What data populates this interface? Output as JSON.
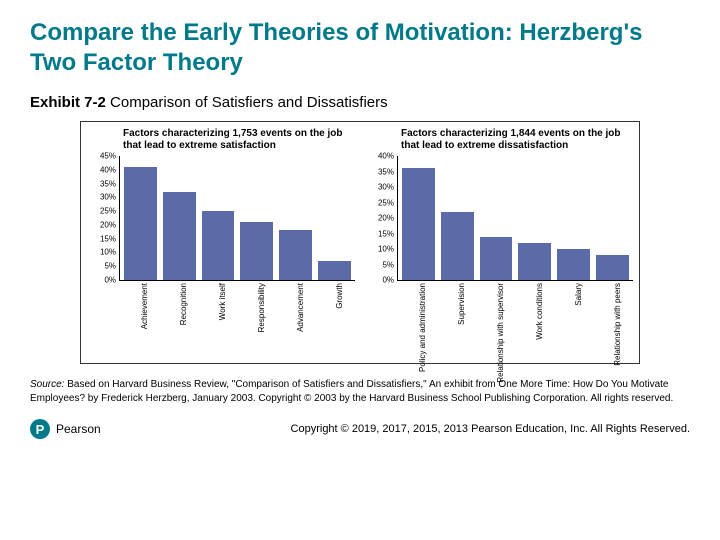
{
  "page": {
    "title": "Compare the Early Theories of Motivation: Herzberg's Two Factor Theory",
    "exhibit_bold": "Exhibit 7-2",
    "exhibit_rest": " Comparison of Satisfiers and Dissatisfiers",
    "source_label": "Source:",
    "source_text": " Based on Harvard Business Review, \"Comparison of Satisfiers and Dissatisfiers,\" An exhibit from One More Time: How Do You Motivate Employees? by Frederick Herzberg, January 2003. Copyright © 2003 by the Harvard Business School Publishing Corporation. All rights reserved.",
    "brand": "Pearson",
    "copyright": "Copyright © 2019, 2017, 2015, 2013 Pearson Education, Inc. All Rights Reserved."
  },
  "left_chart": {
    "type": "bar",
    "title": "Factors characterizing 1,753 events on the job that lead to extreme satisfaction",
    "title_fontsize": 10,
    "bar_color": "#5a6ba8",
    "background_color": "#ffffff",
    "axis_color": "#000000",
    "label_fontsize": 8,
    "ymax": 45,
    "ymin": 0,
    "yticks": [
      45,
      40,
      35,
      30,
      25,
      20,
      15,
      10,
      5,
      0
    ],
    "ytick_labels": [
      "45%",
      "40%",
      "35%",
      "30%",
      "25%",
      "20%",
      "15%",
      "10%",
      "5%",
      "0%"
    ],
    "categories": [
      "Achievement",
      "Recognition",
      "Work itself",
      "Responsibility",
      "Advancement",
      "Growth"
    ],
    "values": [
      41,
      32,
      25,
      21,
      18,
      7
    ]
  },
  "right_chart": {
    "type": "bar",
    "title": "Factors characterizing 1,844 events on the job that lead to extreme dissatisfaction",
    "title_fontsize": 10,
    "bar_color": "#5a6ba8",
    "background_color": "#ffffff",
    "axis_color": "#000000",
    "label_fontsize": 8,
    "ymax": 40,
    "ymin": 0,
    "yticks": [
      40,
      35,
      30,
      25,
      20,
      15,
      10,
      5,
      0
    ],
    "ytick_labels": [
      "40%",
      "35%",
      "30%",
      "25%",
      "20%",
      "15%",
      "10%",
      "5%",
      "0%"
    ],
    "categories": [
      "Policy and administration",
      "Supervision",
      "Relationship with supervisor",
      "Work conditions",
      "Salary",
      "Relationship with peers"
    ],
    "values": [
      36,
      22,
      14,
      12,
      10,
      8
    ]
  }
}
